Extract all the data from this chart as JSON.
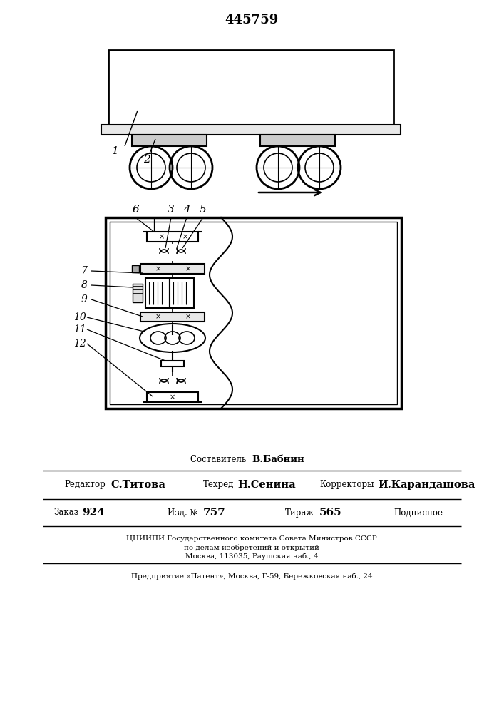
{
  "title": "445759",
  "background_color": "#ffffff",
  "line_color": "#000000",
  "fig_width": 7.07,
  "fig_height": 10.0,
  "footer": {
    "sestavitel": "Составитель  В.Бабнин",
    "redaktor_label": "Редактор",
    "redaktor_name": "С.Титова",
    "tehred_label": "Техред",
    "tehred_name": "Н.Сенина",
    "korrektor_label": "Корректоры",
    "korrektor_name": "И.Карандашова",
    "zakaz_label": "Заказ",
    "zakaz_val": "924",
    "izd_label": "Изд. №",
    "izd_val": "757",
    "tirazh_label": "Тираж",
    "tirazh_val": "565",
    "podpisnoe": "Подписное",
    "cniip1": "ЦНИИПИ Государственного комитета Совета Министров СССР",
    "cniip2": "по делам изобретений и открытий",
    "cniip3": "Москва, 113035, Раушская наб., 4",
    "patent": "Предприятие «Патент», Москва, Г-59, Бережковская наб., 24"
  }
}
